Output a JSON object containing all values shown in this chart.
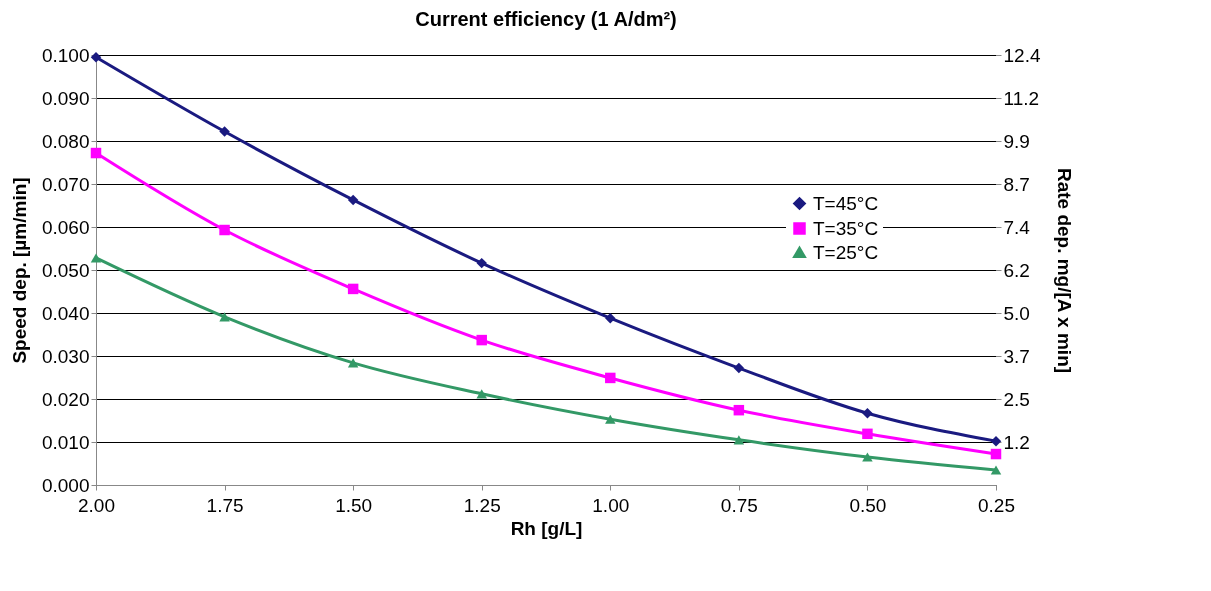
{
  "chart_data": {
    "type": "line",
    "title": "Current efficiency (1 A/dm²)",
    "xlabel": "Rh [g/L]",
    "ylabel": "Speed dep. [µm/min]",
    "y2label": "Rate dep. mg/[A x min]",
    "categories": [
      "2.00",
      "1.75",
      "1.50",
      "1.25",
      "1.00",
      "0.75",
      "0.50",
      "0.25"
    ],
    "series": [
      {
        "name": "T=45°C",
        "color": "#1a1a80",
        "marker": "diamond",
        "values": [
          0.0995,
          0.0822,
          0.0663,
          0.0516,
          0.0388,
          0.0272,
          0.0167,
          0.0102
        ]
      },
      {
        "name": "T=35°C",
        "color": "#ff00ff",
        "marker": "square",
        "values": [
          0.0772,
          0.0593,
          0.0456,
          0.0337,
          0.0249,
          0.0174,
          0.0119,
          0.0072
        ]
      },
      {
        "name": "T=25°C",
        "color": "#339966",
        "marker": "triangle",
        "values": [
          0.0528,
          0.0391,
          0.0284,
          0.0212,
          0.0153,
          0.0105,
          0.0065,
          0.0035
        ]
      }
    ],
    "ylim": [
      0,
      0.1
    ],
    "yticks": [
      {
        "value": 0,
        "label": "0.000"
      },
      {
        "value": 0.01,
        "label": "0.010"
      },
      {
        "value": 0.02,
        "label": "0.020"
      },
      {
        "value": 0.03,
        "label": "0.030"
      },
      {
        "value": 0.04,
        "label": "0.040"
      },
      {
        "value": 0.05,
        "label": "0.050"
      },
      {
        "value": 0.06,
        "label": "0.060"
      },
      {
        "value": 0.07,
        "label": "0.070"
      },
      {
        "value": 0.08,
        "label": "0.080"
      },
      {
        "value": 0.09,
        "label": "0.090"
      },
      {
        "value": 0.1,
        "label": "0.100"
      }
    ],
    "y2lim": [
      0,
      12.4
    ],
    "y2ticks": [
      {
        "value": 1.24,
        "label": "1.2"
      },
      {
        "value": 2.48,
        "label": "2.5"
      },
      {
        "value": 3.72,
        "label": "3.7"
      },
      {
        "value": 4.96,
        "label": "5.0"
      },
      {
        "value": 6.2,
        "label": "6.2"
      },
      {
        "value": 7.44,
        "label": "7.4"
      },
      {
        "value": 8.68,
        "label": "8.7"
      },
      {
        "value": 9.92,
        "label": "9.9"
      },
      {
        "value": 11.16,
        "label": "11.2"
      },
      {
        "value": 12.4,
        "label": "12.4"
      }
    ],
    "grid": "y",
    "legend": "right",
    "line_style": "solid"
  }
}
